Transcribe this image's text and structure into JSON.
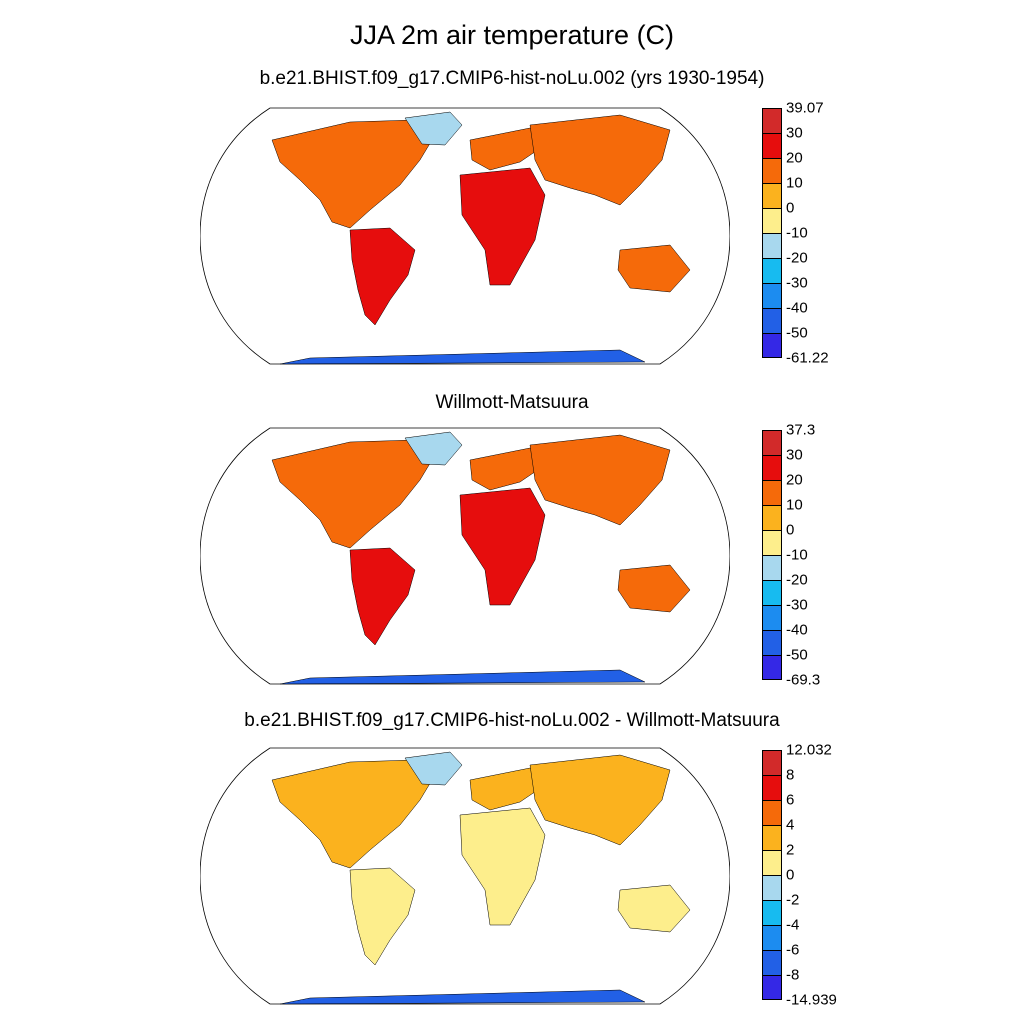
{
  "title": "JJA 2m air temperature (C)",
  "panels": [
    {
      "subtitle": "b.e21.BHIST.f09_g17.CMIP6-hist-noLu.002 (yrs 1930-1954)",
      "scheme": "abs",
      "colorbar": {
        "labels": [
          "39.07",
          "30",
          "20",
          "10",
          "0",
          "-10",
          "-20",
          "-30",
          "-40",
          "-50",
          "-61.22"
        ],
        "colors": [
          "#d22a2a",
          "#e60d0d",
          "#f56a0a",
          "#fbb21e",
          "#fdee8c",
          "#a8d8ee",
          "#17bbf0",
          "#1c8cf0",
          "#2260e6",
          "#3428e6"
        ]
      }
    },
    {
      "subtitle": "Willmott-Matsuura",
      "scheme": "abs",
      "colorbar": {
        "labels": [
          "37.3",
          "30",
          "20",
          "10",
          "0",
          "-10",
          "-20",
          "-30",
          "-40",
          "-50",
          "-69.3"
        ],
        "colors": [
          "#d22a2a",
          "#e60d0d",
          "#f56a0a",
          "#fbb21e",
          "#fdee8c",
          "#a8d8ee",
          "#17bbf0",
          "#1c8cf0",
          "#2260e6",
          "#3428e6"
        ]
      }
    },
    {
      "subtitle": "b.e21.BHIST.f09_g17.CMIP6-hist-noLu.002 - Willmott-Matsuura",
      "scheme": "diff",
      "colorbar": {
        "labels": [
          "12.032",
          "8",
          "6",
          "4",
          "2",
          "0",
          "-2",
          "-4",
          "-6",
          "-8",
          "-14.939"
        ],
        "colors": [
          "#d22a2a",
          "#e60d0d",
          "#f56a0a",
          "#fbb21e",
          "#fdee8c",
          "#a8d8ee",
          "#17bbf0",
          "#1c8cf0",
          "#2260e6",
          "#3428e6"
        ]
      }
    }
  ]
}
